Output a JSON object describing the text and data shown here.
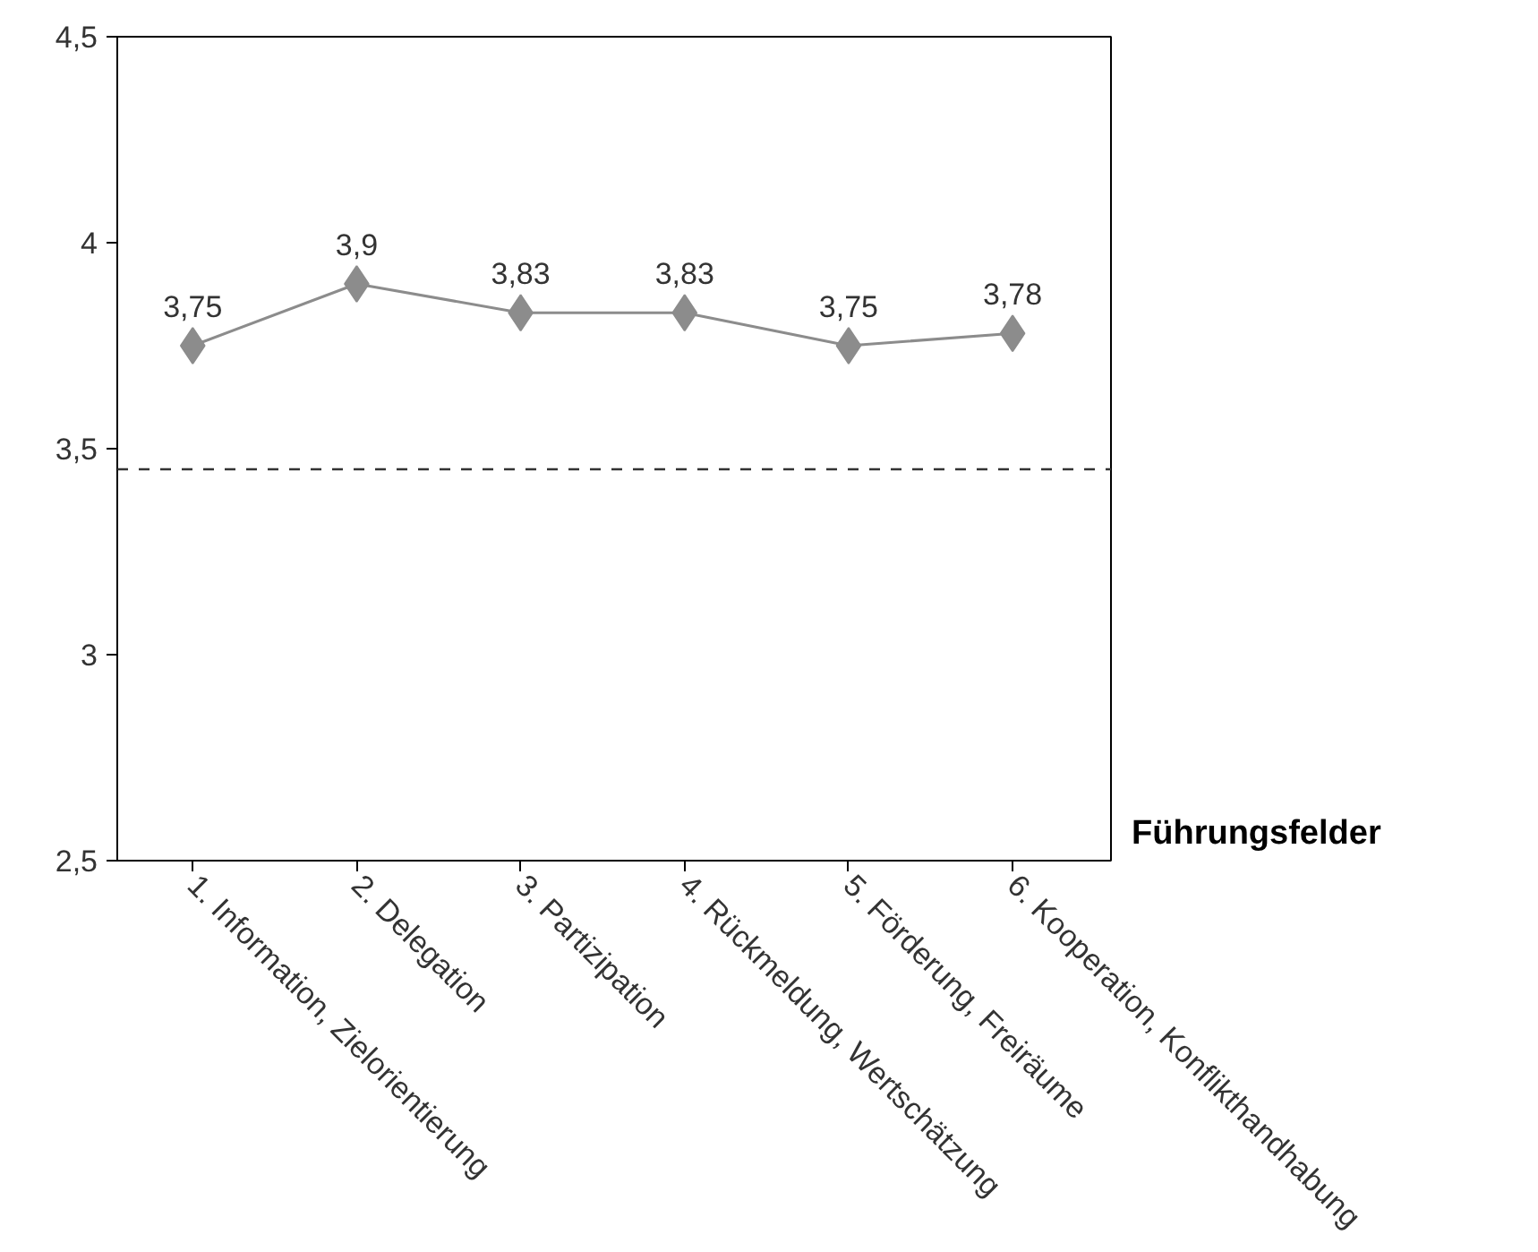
{
  "chart_data": {
    "type": "line",
    "xlabel": "Führungsfelder",
    "categories": [
      "1. Information, Zielorientierung",
      "2. Delegation",
      "3. Partizipation",
      "4. Rückmeldung, Wertschätzung",
      "5. Förderung, Freiräume",
      "6. Kooperation, Konflikthandhabung"
    ],
    "values": [
      3.75,
      3.9,
      3.83,
      3.83,
      3.75,
      3.78
    ],
    "value_labels": [
      "3,75",
      "3,9",
      "3,83",
      "3,83",
      "3,75",
      "3,78"
    ],
    "color": "#8c8c8c",
    "marker": "diamond",
    "line_style": "solid",
    "grid": false,
    "ylim": [
      2.5,
      4.5
    ],
    "yticks": [
      {
        "value": 2.5,
        "label": "2,5"
      },
      3,
      {
        "value": 3.5,
        "label": "3,5"
      },
      4,
      {
        "value": 4.5,
        "label": "4,5"
      }
    ],
    "ref_lines": [
      {
        "axis": "y",
        "value": 3.45,
        "label": null,
        "color": "#333333",
        "line_style": "dashed"
      }
    ]
  }
}
